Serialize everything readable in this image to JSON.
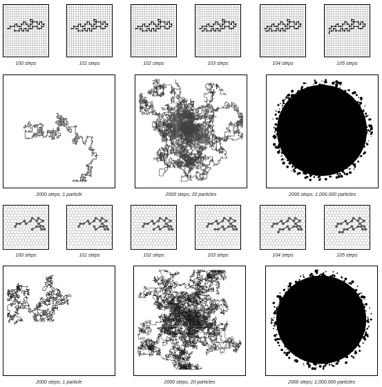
{
  "row1": {
    "panel_type": "square-grid-walk",
    "captions": [
      "100 steps",
      "101 steps",
      "102 steps",
      "103 steps",
      "104 steps",
      "105 steps"
    ]
  },
  "row2": {
    "panel_type": "square-grid-cloud",
    "captions": [
      "2000 steps; 1 particle",
      "2000 steps; 20 particles",
      "2000 steps; 1,000,000 particles"
    ]
  },
  "row3": {
    "panel_type": "hexagonal-grid-walk",
    "captions": [
      "100 steps",
      "101 steps",
      "102 steps",
      "103 steps",
      "104 steps",
      "105 steps"
    ]
  },
  "row4": {
    "panel_type": "hexagonal-grid-cloud",
    "captions": [
      "2000 steps; 1 particle",
      "2000 steps; 20 particles",
      "2000 steps; 1,000,000 particles"
    ]
  },
  "colors": {
    "ink": "#000000",
    "grid": "#777777",
    "hex": "#999999",
    "paper": "#ffffff"
  }
}
